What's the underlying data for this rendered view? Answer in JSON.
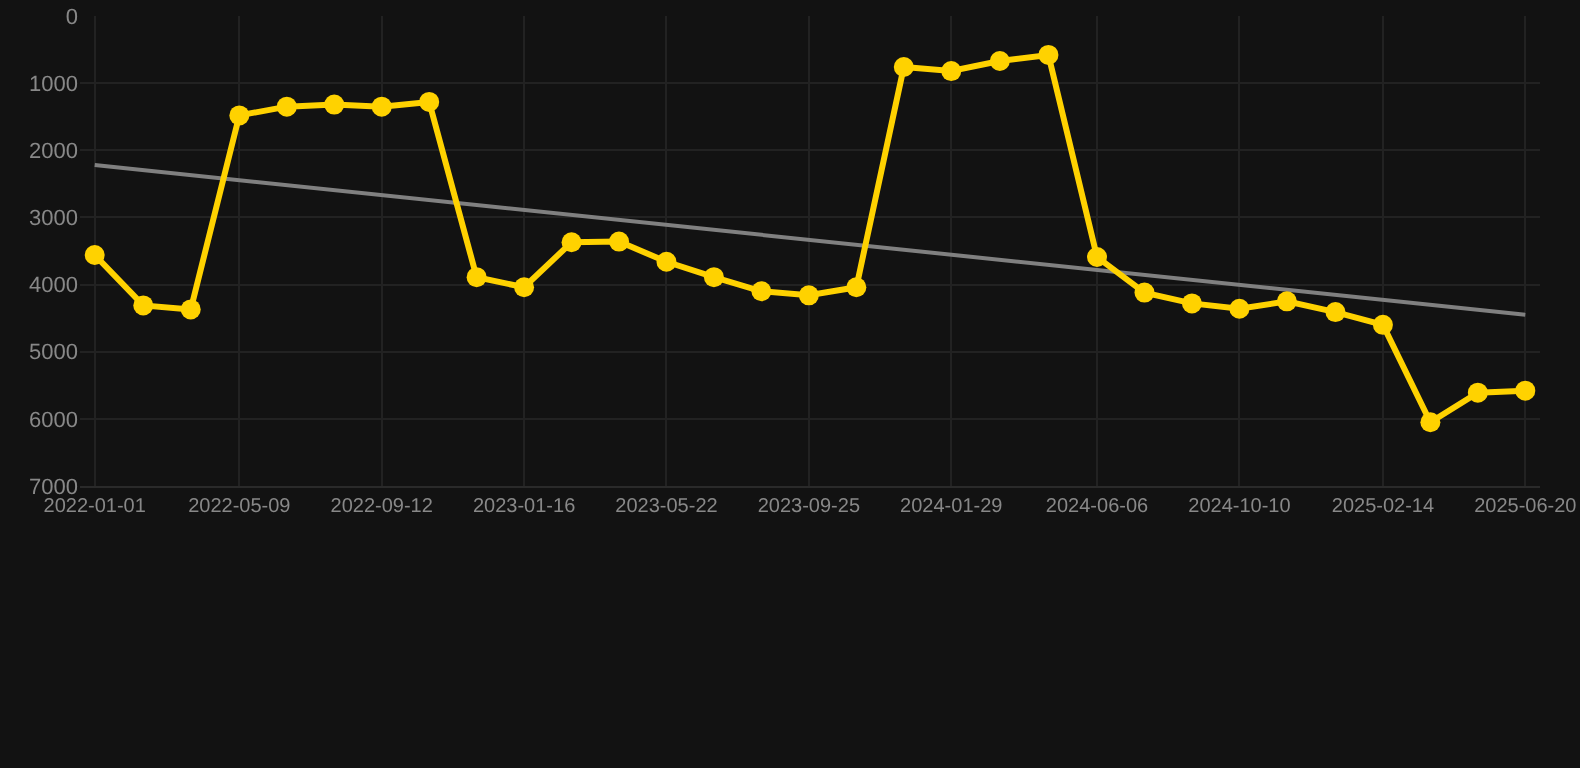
{
  "chart_data": {
    "type": "line",
    "x": [
      "2022-01-01",
      "2022-02-13",
      "2022-03-27",
      "2022-05-09",
      "2022-06-20",
      "2022-08-01",
      "2022-09-12",
      "2022-10-24",
      "2022-12-05",
      "2023-01-16",
      "2023-02-27",
      "2023-04-10",
      "2023-05-22",
      "2023-07-03",
      "2023-08-14",
      "2023-09-25",
      "2023-11-06",
      "2023-12-18",
      "2024-01-29",
      "2024-03-12",
      "2024-04-24",
      "2024-06-06",
      "2024-07-18",
      "2024-08-29",
      "2024-10-10",
      "2024-11-21",
      "2025-01-03",
      "2025-02-14",
      "2025-03-28",
      "2025-05-09",
      "2025-06-20"
    ],
    "series": [
      {
        "color": "#ffd200",
        "marker": "circle",
        "values": [
          3560,
          4310,
          4370,
          1480,
          1350,
          1320,
          1350,
          1280,
          3890,
          4040,
          3370,
          3360,
          3660,
          3890,
          4100,
          4160,
          4040,
          760,
          820,
          670,
          580,
          3590,
          4120,
          4280,
          4360,
          4250,
          4410,
          4600,
          6050,
          5610,
          5580
        ]
      },
      {
        "type": "line",
        "color": "#808080",
        "marker": "none",
        "x": [
          "2022-01-01",
          "2025-06-20"
        ],
        "values": [
          2220,
          4450
        ]
      }
    ],
    "xlim": [
      "2021-12-19",
      "2025-07-03"
    ],
    "xticks": [
      "2022-01-01",
      "2022-05-09",
      "2022-09-12",
      "2023-01-16",
      "2023-05-22",
      "2023-09-25",
      "2024-01-29",
      "2024-06-06",
      "2024-10-10",
      "2025-02-14",
      "2025-06-20"
    ],
    "ylim": [
      7000,
      0
    ],
    "yticks": [
      0,
      1000,
      2000,
      3000,
      4000,
      5000,
      6000,
      7000
    ],
    "grid": true,
    "line_style": "solid"
  }
}
